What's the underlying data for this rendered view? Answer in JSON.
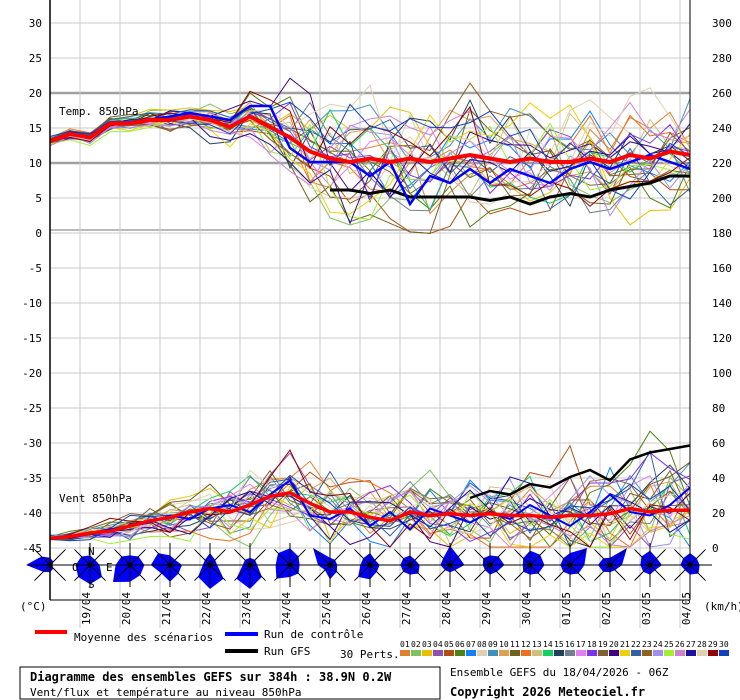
{
  "chart_data": {
    "type": "line",
    "title": "Diagramme des ensembles GEFS sur 384h : 38.9N 0.2W",
    "subtitle": "Vent/flux et température au niveau 850hPa",
    "run_info": "Ensemble GEFS du 18/04/2026 - 06Z",
    "copyright": "Copyright 2026 Meteociel.fr",
    "left_unit": "(°C)",
    "right_unit": "(km/h)",
    "temp_label": "Temp. 850hPa",
    "wind_label": "Vent 850hPa",
    "left_ticks": [
      "30",
      "25",
      "20",
      "15",
      "10",
      "5",
      "0",
      "-5",
      "-10",
      "-15",
      "-20",
      "-25",
      "-30",
      "-35",
      "-40",
      "-45"
    ],
    "right_ticks": [
      "300",
      "280",
      "260",
      "240",
      "220",
      "200",
      "180",
      "160",
      "140",
      "120",
      "100",
      "80",
      "60",
      "40",
      "20",
      "0"
    ],
    "dates": [
      "19/04",
      "20/04",
      "21/04",
      "22/04",
      "23/04",
      "24/04",
      "25/04",
      "26/04",
      "27/04",
      "28/04",
      "29/04",
      "30/04",
      "01/05",
      "02/05",
      "03/05",
      "04/05"
    ],
    "temp_ylim": [
      0,
      30
    ],
    "wind_ylim": [
      0,
      300
    ],
    "hours_step": 12,
    "hours_max": 384,
    "temp_mean": [
      13,
      14,
      13.5,
      15.5,
      15.5,
      16,
      16,
      16.5,
      16,
      15,
      16.5,
      15,
      13.5,
      11.5,
      10.5,
      10,
      10.5,
      10,
      10.5,
      10,
      10.5,
      11,
      10.5,
      10,
      10.5,
      10,
      10,
      10.5,
      10,
      11,
      10.5,
      11.5,
      11
    ],
    "temp_control": [
      13,
      14,
      13.5,
      15.5,
      15.5,
      16,
      16.5,
      17,
      16.5,
      16,
      18,
      18,
      12,
      10,
      10,
      10,
      8,
      10,
      4,
      8,
      7,
      9,
      7,
      9,
      8,
      7,
      9,
      10,
      9,
      10,
      11,
      10,
      9
    ],
    "temp_gfs": [
      null,
      null,
      null,
      null,
      null,
      null,
      null,
      null,
      null,
      null,
      null,
      null,
      null,
      null,
      6,
      6,
      5.5,
      6,
      5,
      5,
      5,
      5,
      4.5,
      5,
      4,
      5,
      5.5,
      5,
      6,
      6.5,
      7,
      8,
      8
    ],
    "temp_spread": [
      0.3,
      0.4,
      0.4,
      0.5,
      0.6,
      0.7,
      0.9,
      1,
      1.2,
      1.4,
      1.8,
      2.2,
      3,
      3.6,
      4,
      4,
      4,
      4,
      4,
      4,
      4,
      4,
      4,
      4,
      4,
      4,
      4,
      4,
      4,
      4,
      4,
      4,
      4
    ],
    "wind_mean": [
      5,
      6,
      8,
      9,
      12,
      15,
      17,
      20,
      22,
      20,
      24,
      29,
      31,
      25,
      20,
      20,
      17,
      15,
      20,
      18,
      19,
      18,
      19,
      18,
      18,
      17,
      18,
      18,
      19,
      22,
      20,
      21,
      21
    ],
    "wind_control": [
      5,
      6,
      8,
      10,
      12,
      14,
      18,
      16,
      22,
      24,
      20,
      30,
      38,
      18,
      16,
      22,
      12,
      20,
      10,
      22,
      18,
      14,
      20,
      16,
      24,
      18,
      12,
      20,
      30,
      20,
      18,
      24,
      34
    ],
    "wind_gfs": [
      null,
      null,
      null,
      null,
      null,
      null,
      null,
      null,
      null,
      null,
      null,
      null,
      null,
      null,
      null,
      null,
      null,
      null,
      null,
      null,
      null,
      28,
      32,
      30,
      36,
      34,
      40,
      44,
      38,
      50,
      54,
      56,
      58
    ],
    "wind_spread": [
      1,
      1.5,
      2,
      3,
      4,
      5,
      6,
      7,
      8,
      9,
      10,
      11,
      12,
      11,
      10,
      10,
      10,
      10,
      11,
      11,
      12,
      12,
      12,
      13,
      13,
      13,
      14,
      14,
      15,
      15,
      16,
      16,
      16
    ],
    "wind_roses": [
      [
        0.3,
        0.2,
        0.1,
        0.2,
        0.3,
        0.4,
        1,
        0.5
      ],
      [
        0.4,
        0.3,
        0.4,
        0.7,
        0.8,
        0.7,
        0.6,
        0.5
      ],
      [
        0.4,
        0.5,
        0.6,
        0.6,
        0.7,
        1,
        0.6,
        0.5
      ],
      [
        0.4,
        0.3,
        0.5,
        0.5,
        0.7,
        0.5,
        0.8,
        0.7
      ],
      [
        0.5,
        0.3,
        0.3,
        0.8,
        1,
        0.7,
        0.3,
        0.3
      ],
      [
        0.3,
        0.3,
        0.3,
        0.7,
        1,
        0.8,
        0.3,
        0.3
      ],
      [
        0.7,
        0.5,
        0.4,
        0.5,
        0.5,
        0.8,
        0.6,
        0.7
      ],
      [
        0.3,
        0.3,
        0.3,
        0.4,
        0.6,
        0.3,
        0.5,
        1
      ],
      [
        0.5,
        0.3,
        0.4,
        0.4,
        0.6,
        0.7,
        0.4,
        0.4
      ],
      [
        0.4,
        0.3,
        0.4,
        0.5,
        0.4,
        0.4,
        0.4,
        0.4
      ],
      [
        0.8,
        0.5,
        0.6,
        0.3,
        0.3,
        0.3,
        0.4,
        0.4
      ],
      [
        0.4,
        0.5,
        0.6,
        0.4,
        0.4,
        0.3,
        0.3,
        0.4
      ],
      [
        0.6,
        0.6,
        0.6,
        0.5,
        0.4,
        0.4,
        0.3,
        0.4
      ],
      [
        0.5,
        1,
        0.6,
        0.5,
        0.4,
        0.4,
        0.4,
        0.4
      ],
      [
        0.3,
        1,
        0.5,
        0.3,
        0.3,
        0.4,
        0.5,
        0.4
      ],
      [
        0.6,
        0.4,
        0.5,
        0.3,
        0.4,
        0.4,
        0.4,
        0.5
      ],
      [
        0.5,
        0.4,
        0.4,
        0.5,
        0.4,
        0.3,
        0.4,
        0.4
      ]
    ],
    "compass": {
      "n": "N",
      "s": "S",
      "e": "E",
      "w": "O"
    },
    "legend": {
      "mean": {
        "label": "Moyenne des scénarios",
        "color": "#ff0000"
      },
      "control": {
        "label": "Run de contrôle",
        "color": "#0000ff"
      },
      "gfs": {
        "label": "Run GFS",
        "color": "#000000"
      },
      "perts_label": "30 Perts.",
      "perts": [
        {
          "id": "01",
          "color": "#e08030"
        },
        {
          "id": "02",
          "color": "#80c060"
        },
        {
          "id": "03",
          "color": "#e8c000"
        },
        {
          "id": "04",
          "color": "#9050b0"
        },
        {
          "id": "05",
          "color": "#b05010"
        },
        {
          "id": "06",
          "color": "#508010"
        },
        {
          "id": "07",
          "color": "#1080ff"
        },
        {
          "id": "08",
          "color": "#e0d0b0"
        },
        {
          "id": "09",
          "color": "#4090c0"
        },
        {
          "id": "10",
          "color": "#e0a050"
        },
        {
          "id": "11",
          "color": "#706020"
        },
        {
          "id": "12",
          "color": "#f07020"
        },
        {
          "id": "13",
          "color": "#d0c080"
        },
        {
          "id": "14",
          "color": "#10d060"
        },
        {
          "id": "15",
          "color": "#204060"
        },
        {
          "id": "16",
          "color": "#708090"
        },
        {
          "id": "17",
          "color": "#e080f0"
        },
        {
          "id": "18",
          "color": "#8030f0"
        },
        {
          "id": "19",
          "color": "#806030"
        },
        {
          "id": "20",
          "color": "#400080"
        },
        {
          "id": "21",
          "color": "#f0d000"
        },
        {
          "id": "22",
          "color": "#3060a0"
        },
        {
          "id": "23",
          "color": "#906020"
        },
        {
          "id": "24",
          "color": "#a090f0"
        },
        {
          "id": "25",
          "color": "#a0f030"
        },
        {
          "id": "26",
          "color": "#d080d0"
        },
        {
          "id": "27",
          "color": "#2010a0"
        },
        {
          "id": "28",
          "color": "#e0d0b0"
        },
        {
          "id": "29",
          "color": "#900000"
        },
        {
          "id": "30",
          "color": "#1040c0"
        }
      ]
    }
  }
}
